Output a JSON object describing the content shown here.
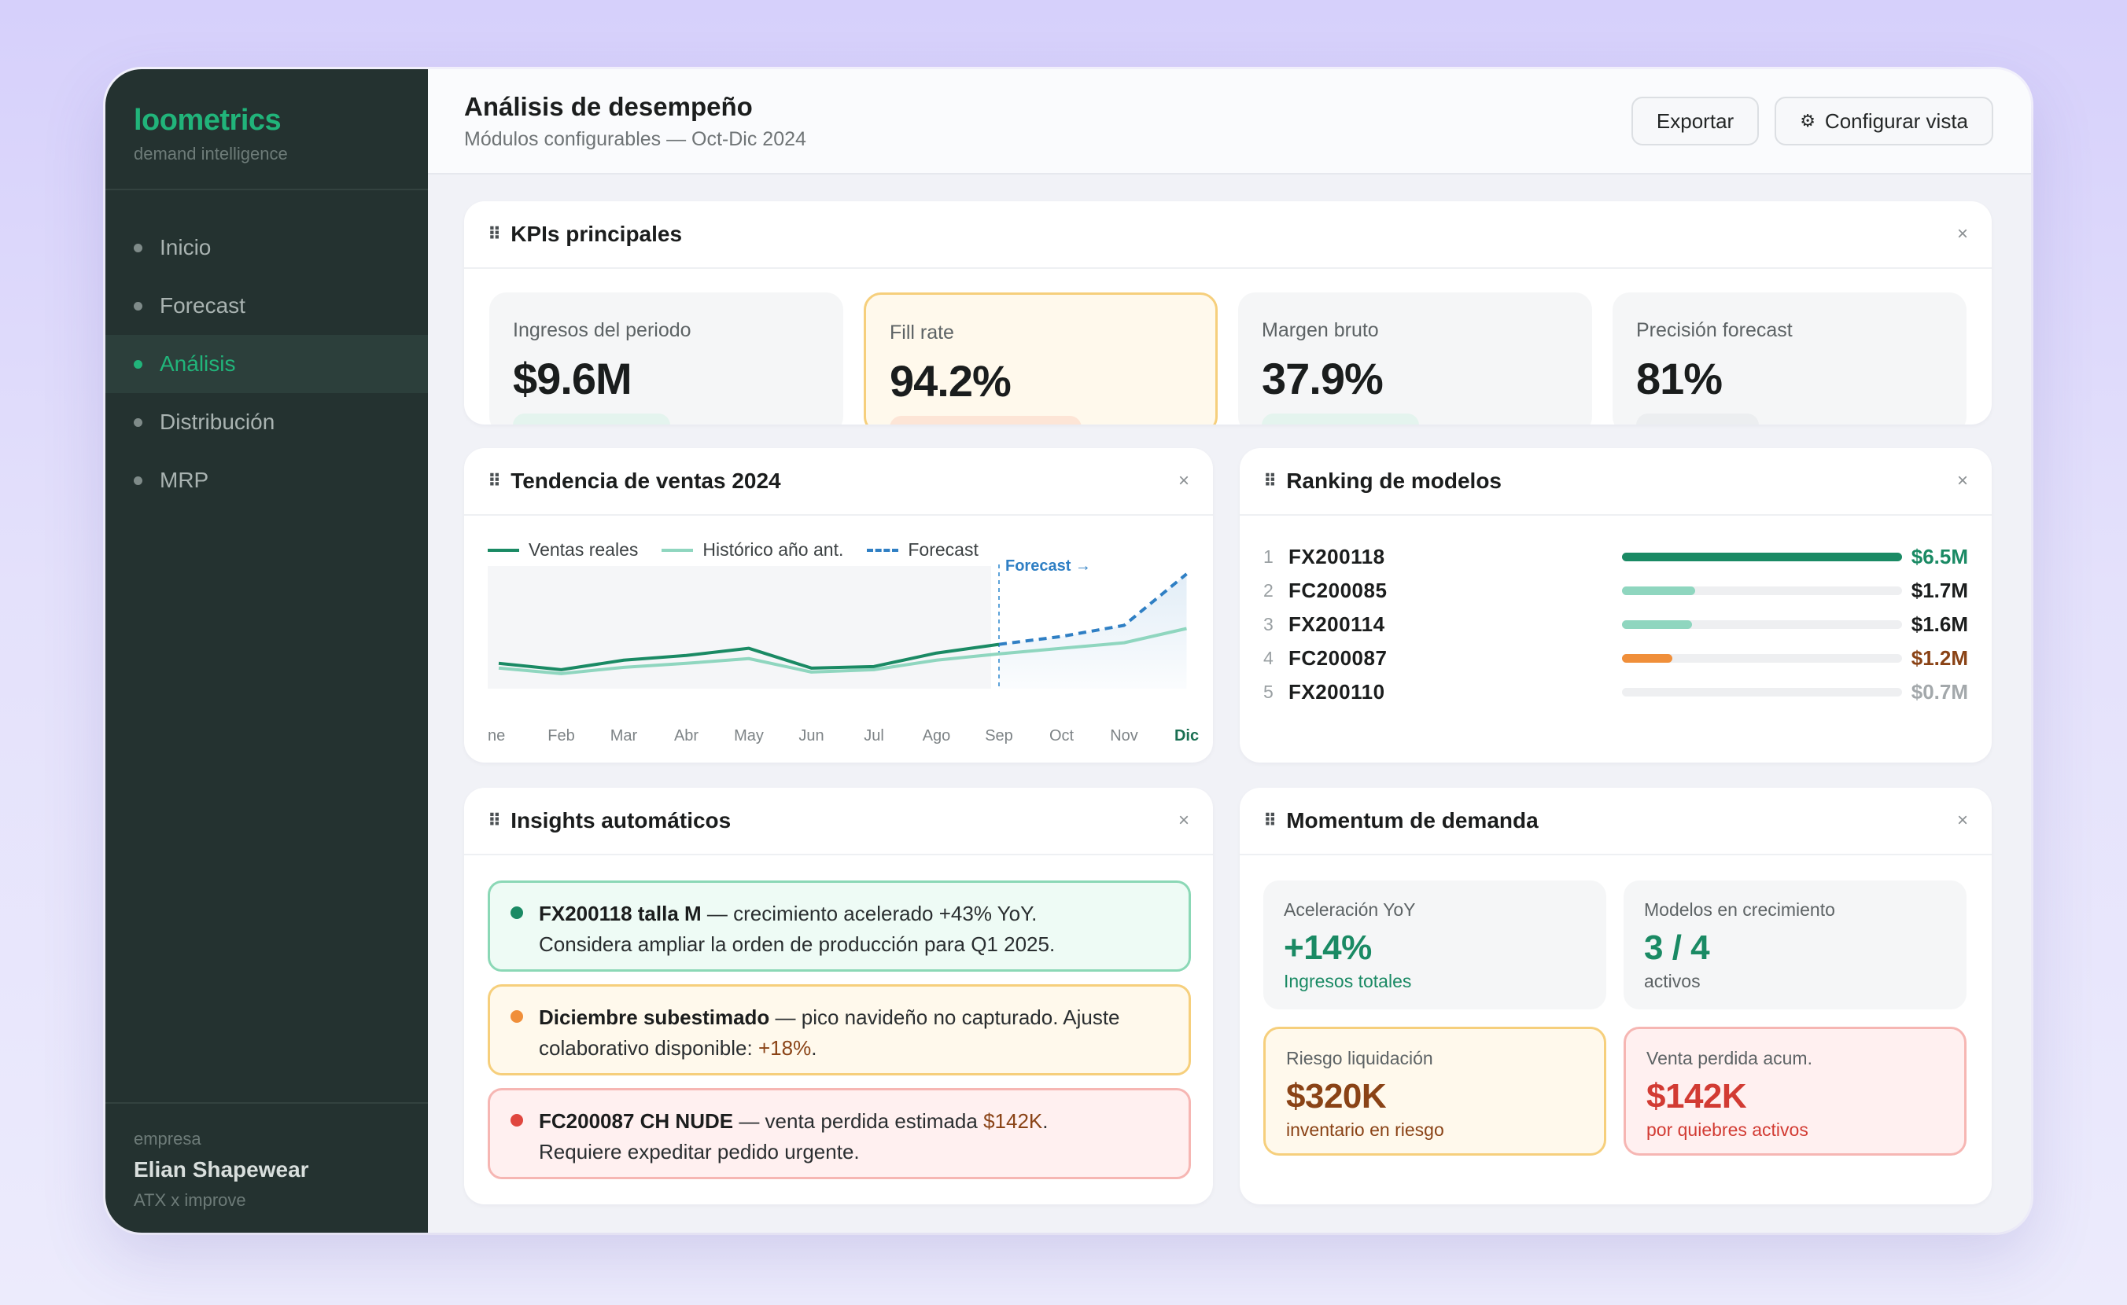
{
  "brand": {
    "name": "loometrics",
    "tagline": "demand intelligence"
  },
  "nav": [
    {
      "label": "Inicio",
      "active": false
    },
    {
      "label": "Forecast",
      "active": false
    },
    {
      "label": "Análisis",
      "active": true
    },
    {
      "label": "Distribución",
      "active": false
    },
    {
      "label": "MRP",
      "active": false
    }
  ],
  "company": {
    "label": "empresa",
    "name": "Elian Shapewear",
    "sub": "ATX x improve"
  },
  "header": {
    "title": "Análisis de desempeño",
    "subtitle": "Módulos configurables — Oct-Dic 2024",
    "export_label": "Exportar",
    "configure_label": "Configurar vista",
    "configure_icon": "gear-icon"
  },
  "kpis": {
    "title": "KPIs principales",
    "close": "×",
    "items": [
      {
        "label": "Ingresos del periodo",
        "value": "$9.6M"
      },
      {
        "label": "Fill rate",
        "value": "94.2%"
      },
      {
        "label": "Margen bruto",
        "value": "37.9%"
      },
      {
        "label": "Precisión forecast",
        "value": "81%"
      }
    ]
  },
  "trend": {
    "title": "Tendencia de ventas 2024",
    "close": "×",
    "legend": [
      "Ventas reales",
      "Histórico año ant.",
      "Forecast"
    ],
    "forecast_marker": "Forecast →",
    "colors": {
      "real": "#1a8a64",
      "prev": "#8fd6bf",
      "forecast": "#2f7fc4"
    }
  },
  "chart_data": {
    "type": "line",
    "categories": [
      "ne",
      "Feb",
      "Mar",
      "Abr",
      "May",
      "Jun",
      "Jul",
      "Ago",
      "Sep",
      "Oct",
      "Nov",
      "Dic"
    ],
    "series": [
      {
        "name": "Ventas reales",
        "values": [
          0.32,
          0.24,
          0.36,
          0.42,
          0.51,
          0.26,
          0.28,
          0.45,
          0.56,
          null,
          null,
          null
        ]
      },
      {
        "name": "Histórico año ant.",
        "values": [
          0.26,
          0.19,
          0.27,
          0.32,
          0.38,
          0.21,
          0.24,
          0.36,
          0.44,
          0.51,
          0.58,
          0.76
        ]
      },
      {
        "name": "Forecast",
        "values": [
          null,
          null,
          null,
          null,
          null,
          null,
          null,
          null,
          0.56,
          0.66,
          0.8,
          1.45
        ]
      }
    ],
    "ylim": [
      0,
      1.55
    ],
    "forecast_start": "Sep",
    "highlight_tick": "Dic"
  },
  "ranking": {
    "title": "Ranking de modelos",
    "close": "×",
    "rows": [
      {
        "rank": "1",
        "model": "FX200118",
        "value": "$6.5M",
        "share": 1.0,
        "bar_color": "#1a8a64",
        "value_color": "#1a8a64"
      },
      {
        "rank": "2",
        "model": "FC200085",
        "value": "$1.7M",
        "share": 0.26,
        "bar_color": "#8fd6bf",
        "value_color": "#1b1d1d"
      },
      {
        "rank": "3",
        "model": "FX200114",
        "value": "$1.6M",
        "share": 0.25,
        "bar_color": "#8fd6bf",
        "value_color": "#1b1d1d"
      },
      {
        "rank": "4",
        "model": "FC200087",
        "value": "$1.2M",
        "share": 0.18,
        "bar_color": "#f08f3a",
        "value_color": "#8a4316"
      },
      {
        "rank": "5",
        "model": "FX200110",
        "value": "$0.7M",
        "share": 0.0,
        "bar_color": "#eeeff1",
        "value_color": "#a3a8ab"
      }
    ]
  },
  "insights": {
    "title": "Insights automáticos",
    "close": "×",
    "items": [
      {
        "bold": "FX200118 talla M",
        "text1": " — crecimiento acelerado +43% YoY.",
        "text2": "Considera ampliar la orden de producción para Q1 2025.",
        "highlight": "",
        "after": "",
        "dot": "#1a8a64"
      },
      {
        "bold": "Diciembre subestimado",
        "text1": " — pico navideño no capturado. Ajuste",
        "text2": "colaborativo disponible: ",
        "highlight": "+18%",
        "after": ".",
        "dot": "#f08f3a"
      },
      {
        "bold": "FC200087 CH NUDE",
        "text1": " — venta perdida estimada ",
        "highlight1": "$142K",
        "after1": ".",
        "text2": "Requiere expeditar pedido urgente.",
        "dot": "#e0473f"
      }
    ]
  },
  "momentum": {
    "title": "Momentum de demanda",
    "close": "×",
    "cards": [
      {
        "label": "Aceleración YoY",
        "value": "+14%",
        "sub": "Ingresos totales",
        "color": "#1a8a64"
      },
      {
        "label": "Modelos en crecimiento",
        "value": "3 / 4",
        "sub": "activos",
        "color": "#1a8a64"
      },
      {
        "label": "Riesgo liquidación",
        "value": "$320K",
        "sub": "inventario en riesgo",
        "color": "#8a4316"
      },
      {
        "label": "Venta perdida acum.",
        "value": "$142K",
        "sub": "por quiebres activos",
        "color": "#d23b33"
      }
    ]
  }
}
